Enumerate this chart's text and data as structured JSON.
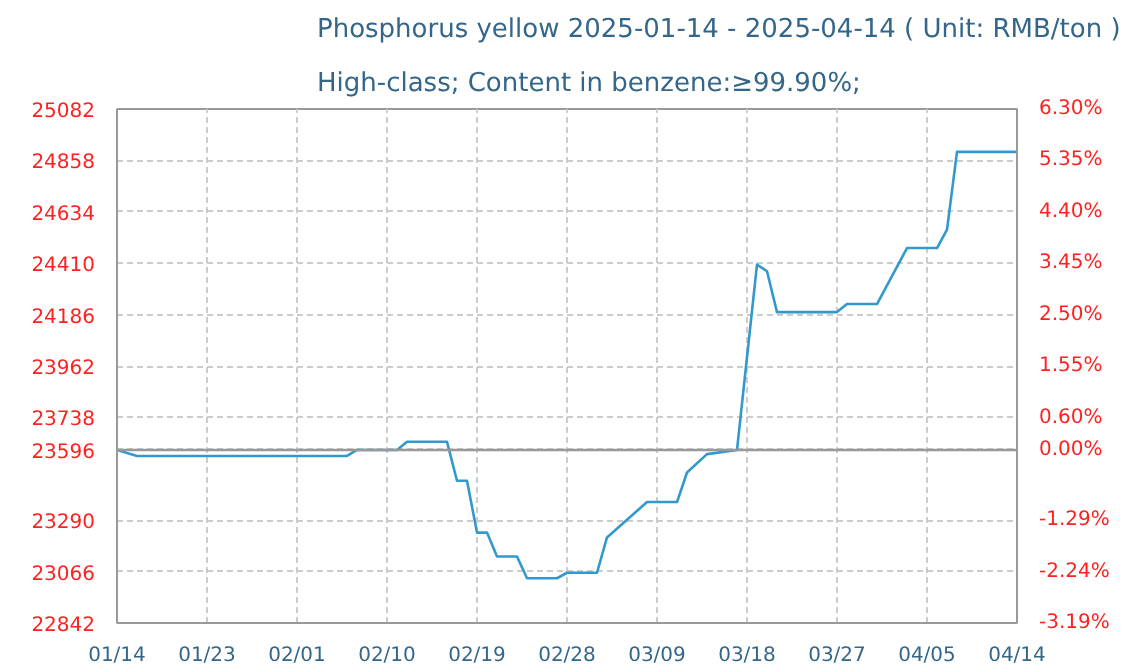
{
  "chart_data": {
    "type": "line",
    "title": "Phosphorus yellow 2025-01-14 - 2025-04-14    ( Unit: RMB/ton )",
    "subtitle": "High-class; Content in benzene:≥99.90%;",
    "x": [
      "2025-01-14",
      "2025-01-16",
      "2025-02-06",
      "2025-02-07",
      "2025-02-11",
      "2025-02-12",
      "2025-02-16",
      "2025-02-17",
      "2025-02-18",
      "2025-02-19",
      "2025-02-20",
      "2025-02-21",
      "2025-02-23",
      "2025-02-24",
      "2025-02-27",
      "2025-02-28",
      "2025-03-03",
      "2025-03-04",
      "2025-03-08",
      "2025-03-11",
      "2025-03-12",
      "2025-03-14",
      "2025-03-17",
      "2025-03-19",
      "2025-03-20",
      "2025-03-21",
      "2025-03-27",
      "2025-03-28",
      "2025-03-31",
      "2025-04-03",
      "2025-04-06",
      "2025-04-07",
      "2025-04-08",
      "2025-04-14"
    ],
    "series": [
      {
        "color": "#3399cc",
        "values": [
          23596,
          23570,
          23570,
          23596,
          23596,
          23632,
          23632,
          23462,
          23462,
          23236,
          23236,
          23132,
          23132,
          23037,
          23037,
          23061,
          23061,
          23215,
          23369,
          23369,
          23498,
          23578,
          23596,
          24404,
          24375,
          24197,
          24197,
          24232,
          24232,
          24476,
          24476,
          24556,
          24895,
          24895
        ]
      }
    ],
    "xlim": [
      "2025-01-14",
      "2025-04-14"
    ],
    "xticks": [
      {
        "value": "2025-01-14",
        "label": "01/14"
      },
      {
        "value": "2025-01-23",
        "label": "01/23"
      },
      {
        "value": "2025-02-01",
        "label": "02/01"
      },
      {
        "value": "2025-02-10",
        "label": "02/10"
      },
      {
        "value": "2025-02-19",
        "label": "02/19"
      },
      {
        "value": "2025-02-28",
        "label": "02/28"
      },
      {
        "value": "2025-03-09",
        "label": "03/09"
      },
      {
        "value": "2025-03-18",
        "label": "03/18"
      },
      {
        "value": "2025-03-27",
        "label": "03/27"
      },
      {
        "value": "2025-04-05",
        "label": "04/05"
      },
      {
        "value": "2025-04-14",
        "label": "04/14"
      }
    ],
    "ylim": [
      22842,
      25082
    ],
    "yticks": [
      22842,
      23066,
      23290,
      23596,
      23738,
      23962,
      24186,
      24410,
      24634,
      24858,
      25082
    ],
    "y2lim": [
      -3.19,
      6.3
    ],
    "y2ticks": [
      {
        "value": -3.19,
        "label": "-3.19%"
      },
      {
        "value": -2.24,
        "label": "-2.24%"
      },
      {
        "value": -1.29,
        "label": "-1.29%"
      },
      {
        "value": 0,
        "label": "0.00%"
      },
      {
        "value": 0.6,
        "label": "0.60%"
      },
      {
        "value": 1.55,
        "label": "1.55%"
      },
      {
        "value": 2.5,
        "label": "2.50%"
      },
      {
        "value": 3.45,
        "label": "3.45%"
      },
      {
        "value": 4.4,
        "label": "4.40%"
      },
      {
        "value": 5.35,
        "label": "5.35%"
      },
      {
        "value": 6.3,
        "label": "6.30%"
      }
    ],
    "ref_lines": [
      {
        "axis": "y",
        "value": 23596,
        "color": "#999999",
        "line_style": "solid"
      }
    ],
    "grid": true,
    "marker": "none",
    "line_style": "solid"
  }
}
